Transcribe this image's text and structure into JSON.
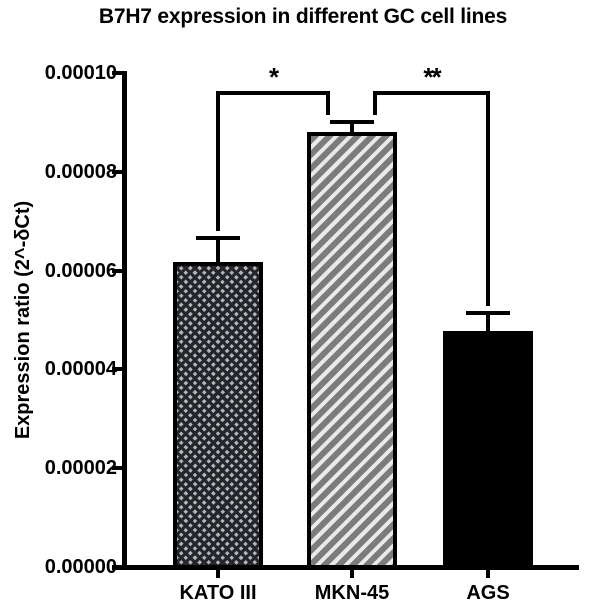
{
  "title": "B7H7 expression in different GC cell lines",
  "chart_data": {
    "type": "bar",
    "title": "B7H7 expression in different GC cell lines",
    "xlabel": "",
    "ylabel": "Expression ratio (2^-δCt)",
    "categories": [
      "KATO III",
      "MKN-45",
      "AGS"
    ],
    "values": [
      6.17e-05,
      8.81e-05,
      4.78e-05
    ],
    "error_sd_upper": [
      4.9e-06,
      2e-06,
      3.6e-06
    ],
    "error_bars": "upper only, capped",
    "ylim": [
      0,
      0.0001
    ],
    "ytick_labels": [
      "0.00000",
      "0.00002",
      "0.00004",
      "0.00006",
      "0.00008",
      "0.00010"
    ],
    "grid": false,
    "legend_position": "none",
    "bar_styles": [
      {
        "category": "KATO III",
        "pattern": "diamond-crosshatch",
        "fill": "#24262b",
        "accent": "#b3b4b8"
      },
      {
        "category": "MKN-45",
        "pattern": "diagonal-stripes",
        "fill": "#7c7c7c",
        "accent": "#e9e9e9"
      },
      {
        "category": "AGS",
        "pattern": "solid",
        "fill": "#000000",
        "accent": "#000000"
      }
    ],
    "significance": [
      {
        "between": [
          "KATO III",
          "MKN-45"
        ],
        "label": "*"
      },
      {
        "between": [
          "MKN-45",
          "AGS"
        ],
        "label": "**"
      }
    ],
    "line_color": "#000000",
    "background_color": "#ffffff"
  }
}
